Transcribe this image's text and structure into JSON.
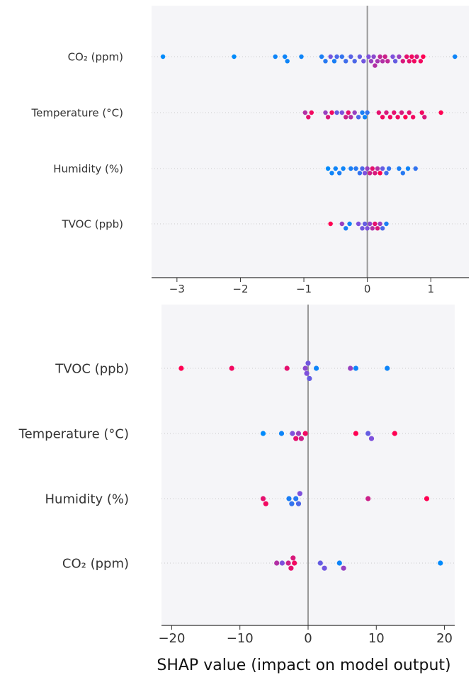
{
  "chart_data": [
    {
      "type": "scatter",
      "subtype": "shap-beeswarm",
      "xlim": [
        -3.4,
        1.6
      ],
      "xticks": [
        -3,
        -2,
        -1,
        0,
        1
      ],
      "xtick_labels": [
        "−3",
        "−2",
        "−1",
        "0",
        "1"
      ],
      "xlabel": "",
      "grid": false,
      "legend": "none",
      "features": [
        {
          "name": "CO₂ (ppm)",
          "points": [
            {
              "x": -3.22,
              "c": 0.0
            },
            {
              "x": -2.1,
              "c": 0.0
            },
            {
              "x": -1.45,
              "c": 0.05
            },
            {
              "x": -1.3,
              "c": 0.05
            },
            {
              "x": -1.26,
              "c": 0.05
            },
            {
              "x": -1.04,
              "c": 0.05
            },
            {
              "x": -0.72,
              "c": 0.1
            },
            {
              "x": -0.66,
              "c": 0.15
            },
            {
              "x": -0.58,
              "c": 0.45
            },
            {
              "x": -0.52,
              "c": 0.1
            },
            {
              "x": -0.48,
              "c": 0.3
            },
            {
              "x": -0.4,
              "c": 0.2
            },
            {
              "x": -0.34,
              "c": 0.25
            },
            {
              "x": -0.26,
              "c": 0.35
            },
            {
              "x": -0.2,
              "c": 0.3
            },
            {
              "x": -0.12,
              "c": 0.4
            },
            {
              "x": -0.06,
              "c": 0.45
            },
            {
              "x": 0.02,
              "c": 0.5
            },
            {
              "x": 0.06,
              "c": 0.6
            },
            {
              "x": 0.1,
              "c": 0.55
            },
            {
              "x": 0.12,
              "c": 0.7
            },
            {
              "x": 0.16,
              "c": 0.65
            },
            {
              "x": 0.2,
              "c": 0.75
            },
            {
              "x": 0.24,
              "c": 0.7
            },
            {
              "x": 0.28,
              "c": 0.8
            },
            {
              "x": 0.32,
              "c": 0.75
            },
            {
              "x": 0.4,
              "c": 0.5
            },
            {
              "x": 0.44,
              "c": 0.4
            },
            {
              "x": 0.5,
              "c": 0.6
            },
            {
              "x": 0.56,
              "c": 0.85
            },
            {
              "x": 0.62,
              "c": 0.9
            },
            {
              "x": 0.66,
              "c": 0.9
            },
            {
              "x": 0.7,
              "c": 0.95
            },
            {
              "x": 0.74,
              "c": 0.95
            },
            {
              "x": 0.78,
              "c": 0.85
            },
            {
              "x": 0.84,
              "c": 0.95
            },
            {
              "x": 0.88,
              "c": 1.0
            },
            {
              "x": 1.38,
              "c": 0.05
            }
          ]
        },
        {
          "name": "Temperature (°C)",
          "points": [
            {
              "x": -0.98,
              "c": 0.7
            },
            {
              "x": -0.93,
              "c": 0.9
            },
            {
              "x": -0.88,
              "c": 0.95
            },
            {
              "x": -0.66,
              "c": 0.6
            },
            {
              "x": -0.62,
              "c": 0.85
            },
            {
              "x": -0.56,
              "c": 0.95
            },
            {
              "x": -0.48,
              "c": 0.4
            },
            {
              "x": -0.4,
              "c": 0.5
            },
            {
              "x": -0.34,
              "c": 0.8
            },
            {
              "x": -0.3,
              "c": 0.9
            },
            {
              "x": -0.26,
              "c": 0.7
            },
            {
              "x": -0.2,
              "c": 0.6
            },
            {
              "x": -0.14,
              "c": 0.3
            },
            {
              "x": -0.08,
              "c": 0.1
            },
            {
              "x": -0.04,
              "c": 0.05
            },
            {
              "x": 0.0,
              "c": 0.2
            },
            {
              "x": 0.18,
              "c": 0.9
            },
            {
              "x": 0.24,
              "c": 0.95
            },
            {
              "x": 0.3,
              "c": 0.85
            },
            {
              "x": 0.36,
              "c": 0.95
            },
            {
              "x": 0.42,
              "c": 0.9
            },
            {
              "x": 0.48,
              "c": 0.95
            },
            {
              "x": 0.54,
              "c": 0.85
            },
            {
              "x": 0.6,
              "c": 1.0
            },
            {
              "x": 0.66,
              "c": 0.9
            },
            {
              "x": 0.72,
              "c": 0.95
            },
            {
              "x": 0.86,
              "c": 0.95
            },
            {
              "x": 0.9,
              "c": 0.85
            },
            {
              "x": 1.16,
              "c": 1.0
            }
          ]
        },
        {
          "name": "Humidity (%)",
          "points": [
            {
              "x": -0.62,
              "c": 0.0
            },
            {
              "x": -0.56,
              "c": 0.05
            },
            {
              "x": -0.5,
              "c": 0.05
            },
            {
              "x": -0.44,
              "c": 0.1
            },
            {
              "x": -0.38,
              "c": 0.05
            },
            {
              "x": -0.26,
              "c": 0.1
            },
            {
              "x": -0.18,
              "c": 0.15
            },
            {
              "x": -0.12,
              "c": 0.2
            },
            {
              "x": -0.08,
              "c": 0.3
            },
            {
              "x": -0.04,
              "c": 0.5
            },
            {
              "x": 0.0,
              "c": 0.6
            },
            {
              "x": 0.04,
              "c": 0.8
            },
            {
              "x": 0.08,
              "c": 0.9
            },
            {
              "x": 0.12,
              "c": 0.85
            },
            {
              "x": 0.16,
              "c": 0.7
            },
            {
              "x": 0.2,
              "c": 1.0
            },
            {
              "x": 0.24,
              "c": 0.4
            },
            {
              "x": 0.3,
              "c": 0.25
            },
            {
              "x": 0.34,
              "c": 0.2
            },
            {
              "x": 0.5,
              "c": 0.1
            },
            {
              "x": 0.56,
              "c": 0.15
            },
            {
              "x": 0.64,
              "c": 0.05
            },
            {
              "x": 0.76,
              "c": 0.2
            }
          ]
        },
        {
          "name": "TVOC (ppb)",
          "points": [
            {
              "x": -0.58,
              "c": 1.0
            },
            {
              "x": -0.4,
              "c": 0.6
            },
            {
              "x": -0.34,
              "c": 0.1
            },
            {
              "x": -0.28,
              "c": 0.05
            },
            {
              "x": -0.14,
              "c": 0.5
            },
            {
              "x": -0.08,
              "c": 0.45
            },
            {
              "x": -0.04,
              "c": 0.4
            },
            {
              "x": 0.0,
              "c": 0.5
            },
            {
              "x": 0.04,
              "c": 0.55
            },
            {
              "x": 0.08,
              "c": 0.7
            },
            {
              "x": 0.12,
              "c": 0.9
            },
            {
              "x": 0.16,
              "c": 0.85
            },
            {
              "x": 0.2,
              "c": 0.6
            },
            {
              "x": 0.24,
              "c": 0.3
            },
            {
              "x": 0.3,
              "c": 0.1
            }
          ]
        }
      ]
    },
    {
      "type": "scatter",
      "subtype": "shap-beeswarm",
      "xlim": [
        -21.5,
        21.5
      ],
      "xticks": [
        -20,
        -10,
        0,
        10,
        20
      ],
      "xtick_labels": [
        "−20",
        "−10",
        "0",
        "10",
        "20"
      ],
      "xlabel": "SHAP value (impact on model output)",
      "grid": false,
      "legend": "none",
      "features": [
        {
          "name": "TVOC (ppb)",
          "points": [
            {
              "x": -18.6,
              "c": 1.0
            },
            {
              "x": -11.2,
              "c": 0.95
            },
            {
              "x": -3.1,
              "c": 0.9
            },
            {
              "x": -0.4,
              "c": 0.55
            },
            {
              "x": -0.2,
              "c": 0.5
            },
            {
              "x": 0.0,
              "c": 0.45
            },
            {
              "x": 0.2,
              "c": 0.4
            },
            {
              "x": 1.2,
              "c": 0.05
            },
            {
              "x": 6.2,
              "c": 0.6
            },
            {
              "x": 7.0,
              "c": 0.05
            },
            {
              "x": 11.6,
              "c": 0.05
            }
          ]
        },
        {
          "name": "Temperature (°C)",
          "points": [
            {
              "x": -6.6,
              "c": 0.0
            },
            {
              "x": -3.9,
              "c": 0.05
            },
            {
              "x": -2.3,
              "c": 0.5
            },
            {
              "x": -1.8,
              "c": 0.9
            },
            {
              "x": -1.4,
              "c": 0.6
            },
            {
              "x": -1.0,
              "c": 0.8
            },
            {
              "x": -0.4,
              "c": 0.95
            },
            {
              "x": 7.0,
              "c": 1.0
            },
            {
              "x": 8.8,
              "c": 0.4
            },
            {
              "x": 9.3,
              "c": 0.5
            },
            {
              "x": 12.7,
              "c": 1.0
            }
          ]
        },
        {
          "name": "Humidity (%)",
          "points": [
            {
              "x": -6.6,
              "c": 0.9
            },
            {
              "x": -6.2,
              "c": 0.95
            },
            {
              "x": -2.8,
              "c": 0.1
            },
            {
              "x": -2.4,
              "c": 0.2
            },
            {
              "x": -1.8,
              "c": 0.15
            },
            {
              "x": -1.4,
              "c": 0.3
            },
            {
              "x": -1.2,
              "c": 0.5
            },
            {
              "x": 8.8,
              "c": 0.8
            },
            {
              "x": 17.4,
              "c": 1.0
            }
          ]
        },
        {
          "name": "CO₂ (ppm)",
          "points": [
            {
              "x": -4.6,
              "c": 0.7
            },
            {
              "x": -3.8,
              "c": 0.5
            },
            {
              "x": -2.9,
              "c": 0.8
            },
            {
              "x": -2.5,
              "c": 0.9
            },
            {
              "x": -2.2,
              "c": 0.85
            },
            {
              "x": -2.0,
              "c": 0.95
            },
            {
              "x": 1.8,
              "c": 0.4
            },
            {
              "x": 2.4,
              "c": 0.45
            },
            {
              "x": 4.6,
              "c": 0.05
            },
            {
              "x": 5.2,
              "c": 0.6
            },
            {
              "x": 19.4,
              "c": 0.0
            }
          ]
        }
      ]
    }
  ],
  "colors": {
    "low": "#008afb",
    "high": "#ff0052",
    "zero_line": "#999999",
    "row_line": "#cccccc",
    "plot_bg": "#f5f5f8",
    "axis": "#333333"
  }
}
